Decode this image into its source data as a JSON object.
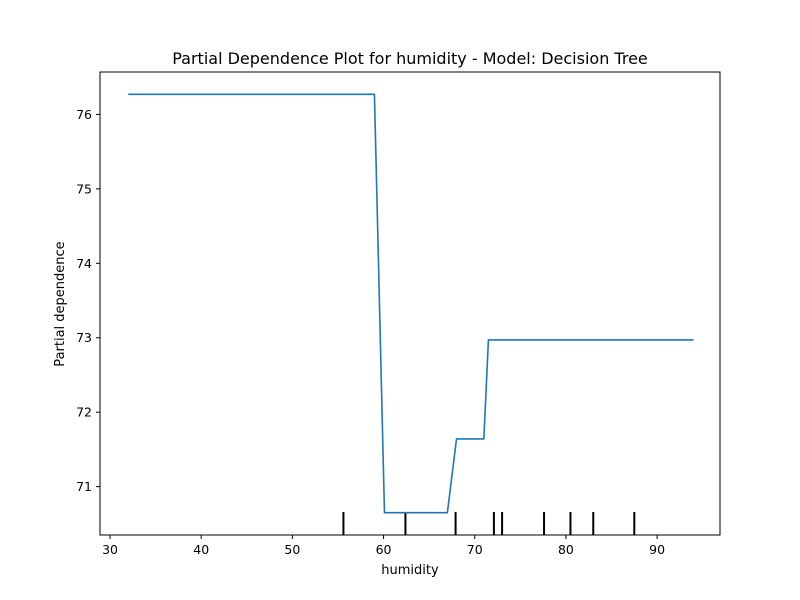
{
  "chart_data": {
    "type": "line",
    "title": "Partial Dependence Plot for humidity - Model: Decision Tree",
    "xlabel": "humidity",
    "ylabel": "Partial dependence",
    "xlim": [
      28.9,
      96.9
    ],
    "ylim": [
      70.35,
      76.57
    ],
    "xticks": [
      30,
      40,
      50,
      60,
      70,
      80,
      90
    ],
    "yticks": [
      71,
      72,
      73,
      74,
      75,
      76
    ],
    "grid": false,
    "legend": "none",
    "line_color": "#1f77b4",
    "series": [
      {
        "x": [
          32.0,
          59.0,
          60.1,
          67.0,
          68.0,
          71.0,
          71.5,
          94.0
        ],
        "y": [
          76.27,
          76.27,
          70.65,
          70.65,
          71.64,
          71.64,
          72.97,
          72.97
        ]
      }
    ],
    "rug_x": [
      55.6,
      62.4,
      67.9,
      72.1,
      73.0,
      77.6,
      80.5,
      83.0,
      87.5
    ]
  }
}
